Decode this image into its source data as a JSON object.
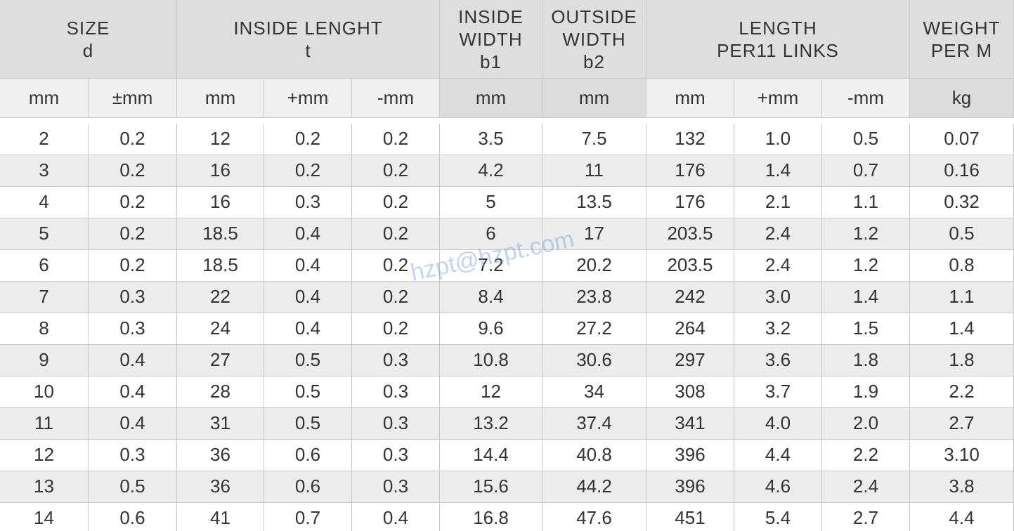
{
  "header": {
    "groups": [
      {
        "lines": [
          "SIZE",
          "d"
        ]
      },
      {
        "lines": [
          "INSIDE LENGHT",
          "t"
        ]
      },
      {
        "lines": [
          "INSIDE",
          "WIDTH",
          "b1"
        ]
      },
      {
        "lines": [
          "OUTSIDE",
          "WIDTH",
          "b2"
        ]
      },
      {
        "lines": [
          "LENGTH",
          "PER11 LINKS"
        ]
      },
      {
        "lines": [
          "WEIGHT",
          "PER M"
        ]
      }
    ],
    "units": [
      "mm",
      "±mm",
      "mm",
      "+mm",
      "-mm",
      "mm",
      "mm",
      "mm",
      "+mm",
      "-mm",
      "kg"
    ]
  },
  "table": {
    "rows": [
      [
        "2",
        "0.2",
        "12",
        "0.2",
        "0.2",
        "3.5",
        "7.5",
        "132",
        "1.0",
        "0.5",
        "0.07"
      ],
      [
        "3",
        "0.2",
        "16",
        "0.2",
        "0.2",
        "4.2",
        "11",
        "176",
        "1.4",
        "0.7",
        "0.16"
      ],
      [
        "4",
        "0.2",
        "16",
        "0.3",
        "0.2",
        "5",
        "13.5",
        "176",
        "2.1",
        "1.1",
        "0.32"
      ],
      [
        "5",
        "0.2",
        "18.5",
        "0.4",
        "0.2",
        "6",
        "17",
        "203.5",
        "2.4",
        "1.2",
        "0.5"
      ],
      [
        "6",
        "0.2",
        "18.5",
        "0.4",
        "0.2",
        "7.2",
        "20.2",
        "203.5",
        "2.4",
        "1.2",
        "0.8"
      ],
      [
        "7",
        "0.3",
        "22",
        "0.4",
        "0.2",
        "8.4",
        "23.8",
        "242",
        "3.0",
        "1.4",
        "1.1"
      ],
      [
        "8",
        "0.3",
        "24",
        "0.4",
        "0.2",
        "9.6",
        "27.2",
        "264",
        "3.2",
        "1.5",
        "1.4"
      ],
      [
        "9",
        "0.4",
        "27",
        "0.5",
        "0.3",
        "10.8",
        "30.6",
        "297",
        "3.6",
        "1.8",
        "1.8"
      ],
      [
        "10",
        "0.4",
        "28",
        "0.5",
        "0.3",
        "12",
        "34",
        "308",
        "3.7",
        "1.9",
        "2.2"
      ],
      [
        "11",
        "0.4",
        "31",
        "0.5",
        "0.3",
        "13.2",
        "37.4",
        "341",
        "4.0",
        "2.0",
        "2.7"
      ],
      [
        "12",
        "0.3",
        "36",
        "0.6",
        "0.3",
        "14.4",
        "40.8",
        "396",
        "4.4",
        "2.2",
        "3.10"
      ],
      [
        "13",
        "0.5",
        "36",
        "0.6",
        "0.3",
        "15.6",
        "44.2",
        "396",
        "4.6",
        "2.4",
        "3.8"
      ],
      [
        "14",
        "0.6",
        "41",
        "0.7",
        "0.4",
        "16.8",
        "47.6",
        "451",
        "5.4",
        "2.7",
        "4.4"
      ]
    ]
  },
  "watermark": "hzpt@hzpt.com"
}
